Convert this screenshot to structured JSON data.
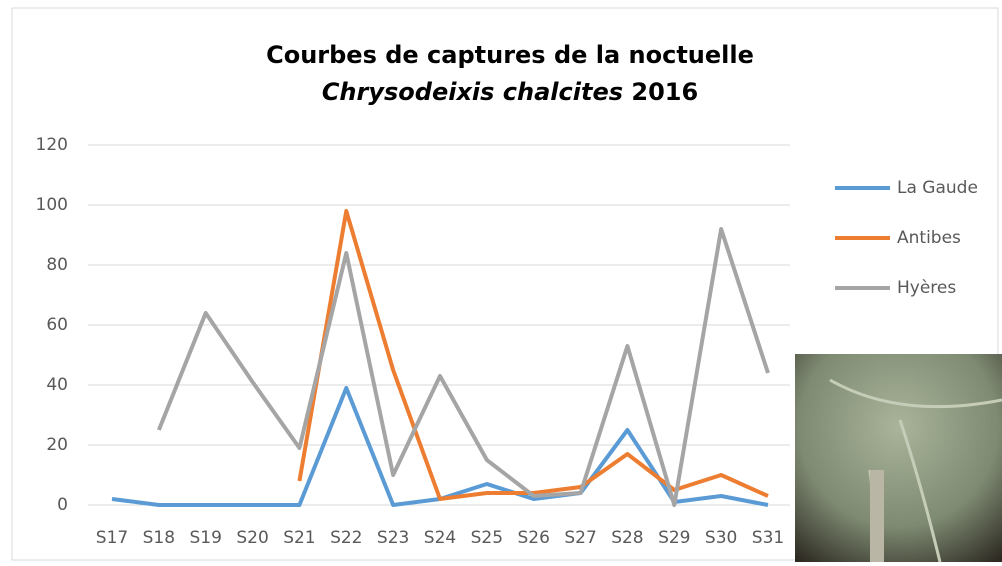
{
  "chart_data": {
    "type": "line",
    "title": [
      "Courbes de captures de la noctuelle",
      "Chrysodeixis chalcites",
      "2016"
    ],
    "categories": [
      "S17",
      "S18",
      "S19",
      "S20",
      "S21",
      "S22",
      "S23",
      "S24",
      "S25",
      "S26",
      "S27",
      "S28",
      "S29",
      "S30",
      "S31"
    ],
    "series": [
      {
        "name": "La Gaude",
        "color": "#5b9bd5",
        "values": [
          2,
          0,
          0,
          0,
          0,
          39,
          0,
          2,
          7,
          2,
          4,
          25,
          1,
          3,
          0
        ]
      },
      {
        "name": "Antibes",
        "color": "#ed7d31",
        "values": [
          null,
          null,
          null,
          null,
          8,
          98,
          45,
          2,
          4,
          4,
          6,
          17,
          5,
          10,
          3
        ]
      },
      {
        "name": "Hyères",
        "color": "#a5a5a5",
        "values": [
          null,
          25,
          64,
          41,
          19,
          84,
          10,
          43,
          15,
          3,
          4,
          53,
          0,
          92,
          44
        ]
      }
    ],
    "ylim": [
      0,
      120
    ],
    "yticks": [
      0,
      20,
      40,
      60,
      80,
      100,
      120
    ],
    "grid": true,
    "legend": "right"
  }
}
